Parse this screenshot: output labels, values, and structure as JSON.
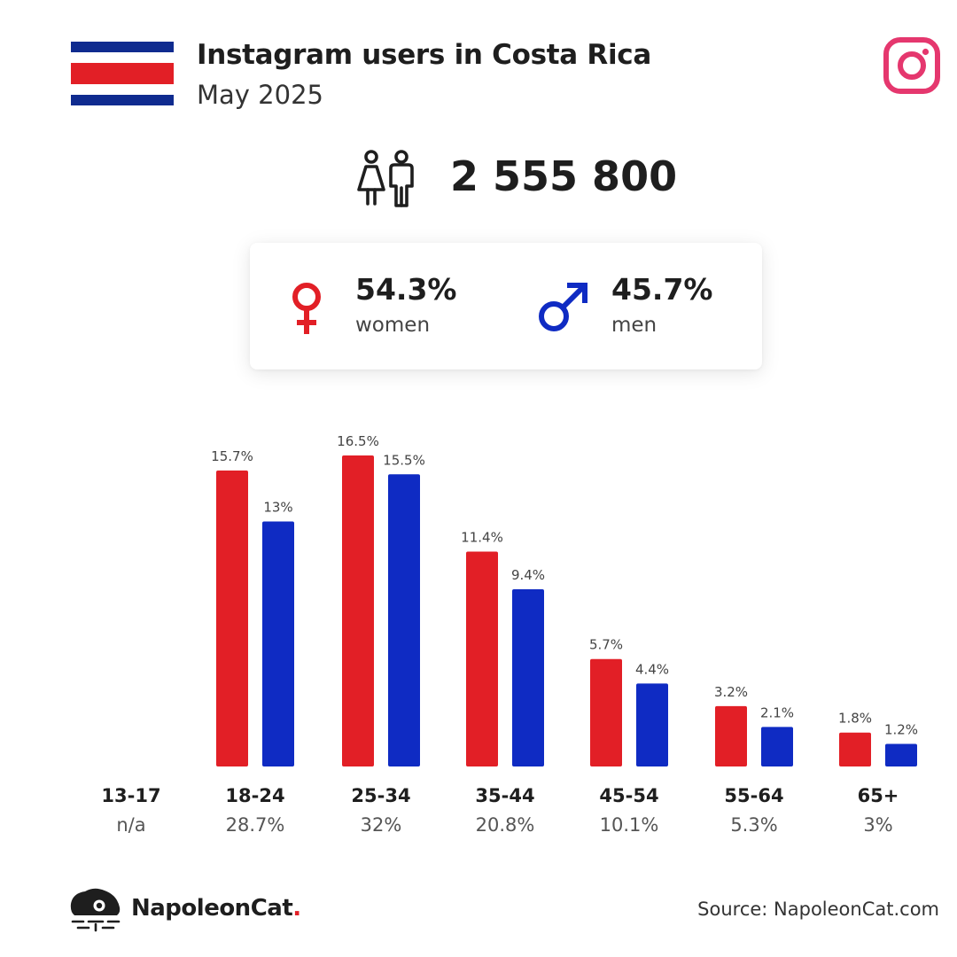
{
  "header": {
    "title": "Instagram users in Costa Rica",
    "subtitle": "May 2025"
  },
  "summary": {
    "total_users": "2 555 800",
    "women_pct": "54.3%",
    "women_label": "women",
    "men_pct": "45.7%",
    "men_label": "men"
  },
  "icons": {
    "flag": "costa-rica-flag-icon",
    "platform": "instagram-icon",
    "users": "users-icon",
    "female": "female-icon",
    "male": "male-icon",
    "brand": "napoleoncat-logo-icon"
  },
  "colors": {
    "women": "#e21f26",
    "men": "#0f2bc3",
    "instagram": "#e5376e"
  },
  "chart_data": {
    "type": "bar",
    "categories": [
      "13-17",
      "18-24",
      "25-34",
      "35-44",
      "45-54",
      "55-64",
      "65+"
    ],
    "category_totals": [
      "n/a",
      "28.7%",
      "32%",
      "20.8%",
      "10.1%",
      "5.3%",
      "3%"
    ],
    "series": [
      {
        "name": "women",
        "values": [
          null,
          15.7,
          16.5,
          11.4,
          5.7,
          3.2,
          1.8
        ],
        "labels": [
          "",
          "15.7%",
          "16.5%",
          "11.4%",
          "5.7%",
          "3.2%",
          "1.8%"
        ]
      },
      {
        "name": "men",
        "values": [
          null,
          13,
          15.5,
          9.4,
          4.4,
          2.1,
          1.2
        ],
        "labels": [
          "",
          "13%",
          "15.5%",
          "9.4%",
          "4.4%",
          "2.1%",
          "1.2%"
        ]
      }
    ],
    "ylim": [
      0,
      16.5
    ],
    "grid": false,
    "legend": "none"
  },
  "footer": {
    "brand_name": "NapoleonCat",
    "brand_dot": ".",
    "source": "Source: NapoleonCat.com"
  }
}
